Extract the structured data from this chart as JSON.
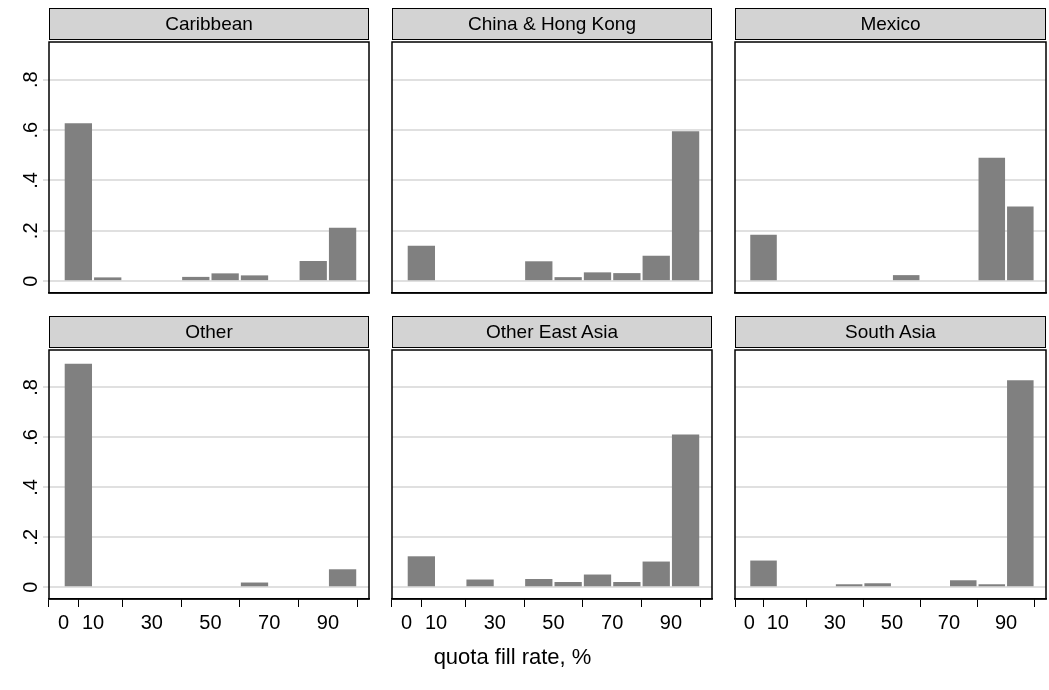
{
  "chart_data": [
    {
      "type": "histogram",
      "title": "Caribbean",
      "bins": [
        0,
        10,
        20,
        30,
        40,
        50,
        60,
        70,
        80,
        90,
        100
      ],
      "values": [
        0.627,
        0.015,
        0,
        0,
        0.017,
        0.031,
        0.023,
        0,
        0.08,
        0.212
      ],
      "color": "#808080",
      "xlim": [
        -5,
        104
      ],
      "ylim": [
        -0.047,
        0.95
      ],
      "xticks": [
        0,
        10,
        30,
        50,
        70,
        90
      ],
      "yticks": [
        0,
        {
          "value": 0.2,
          "label": ".2"
        },
        {
          "value": 0.4,
          "label": ".4"
        },
        {
          "value": 0.6,
          "label": ".6"
        },
        {
          "value": 0.8,
          "label": ".8"
        }
      ],
      "grid": "y",
      "tick_labels": "y"
    },
    {
      "type": "histogram",
      "title": "China & Hong Kong",
      "bins": [
        0,
        10,
        20,
        30,
        40,
        50,
        60,
        70,
        80,
        90,
        100
      ],
      "values": [
        0.141,
        0,
        0,
        0,
        0.079,
        0.016,
        0.035,
        0.032,
        0.101,
        0.595
      ],
      "color": "#808080",
      "xlim": [
        -5,
        104
      ],
      "ylim": [
        -0.047,
        0.95
      ],
      "xticks": [
        0,
        10,
        30,
        50,
        70,
        90
      ],
      "yticks": [
        0,
        0.2,
        0.4,
        0.6,
        0.8
      ],
      "grid": "y",
      "tick_labels": false
    },
    {
      "type": "histogram",
      "title": "Mexico",
      "bins": [
        0,
        10,
        20,
        30,
        40,
        50,
        60,
        70,
        80,
        90,
        100
      ],
      "values": [
        0.184,
        0,
        0,
        0,
        0,
        0.024,
        0,
        0,
        0.49,
        0.297
      ],
      "color": "#808080",
      "xlim": [
        -5,
        104
      ],
      "ylim": [
        -0.047,
        0.95
      ],
      "xticks": [
        0,
        10,
        30,
        50,
        70,
        90
      ],
      "yticks": [
        0,
        0.2,
        0.4,
        0.6,
        0.8
      ],
      "grid": "y",
      "tick_labels": false
    },
    {
      "type": "histogram",
      "title": "Other",
      "bins": [
        0,
        10,
        20,
        30,
        40,
        50,
        60,
        70,
        80,
        90,
        100
      ],
      "values": [
        0.895,
        0,
        0,
        0,
        0,
        0,
        0.019,
        0,
        0,
        0.072
      ],
      "color": "#808080",
      "xlim": [
        -5,
        104
      ],
      "ylim": [
        -0.047,
        0.95
      ],
      "xticks": [
        0,
        10,
        30,
        50,
        70,
        90
      ],
      "yticks": [
        0,
        {
          "value": 0.2,
          "label": ".2"
        },
        {
          "value": 0.4,
          "label": ".4"
        },
        {
          "value": 0.6,
          "label": ".6"
        },
        {
          "value": 0.8,
          "label": ".8"
        }
      ],
      "grid": "y"
    },
    {
      "type": "histogram",
      "title": "Other East Asia",
      "xlabel": "quota fill rate, %",
      "bins": [
        0,
        10,
        20,
        30,
        40,
        50,
        60,
        70,
        80,
        90,
        100
      ],
      "values": [
        0.124,
        0,
        0.031,
        0,
        0.033,
        0.021,
        0.051,
        0.021,
        0.103,
        0.612
      ],
      "color": "#808080",
      "xlim": [
        -5,
        104
      ],
      "ylim": [
        -0.047,
        0.95
      ],
      "xticks": [
        0,
        10,
        30,
        50,
        70,
        90
      ],
      "yticks": [
        0,
        0.2,
        0.4,
        0.6,
        0.8
      ],
      "grid": "y",
      "tick_labels": "x"
    },
    {
      "type": "histogram",
      "title": "South Asia",
      "bins": [
        0,
        10,
        20,
        30,
        40,
        50,
        60,
        70,
        80,
        90,
        100
      ],
      "values": [
        0.107,
        0,
        0,
        0.012,
        0.016,
        0,
        0,
        0.028,
        0.012,
        0.829
      ],
      "color": "#808080",
      "xlim": [
        -5,
        104
      ],
      "ylim": [
        -0.047,
        0.95
      ],
      "xticks": [
        0,
        10,
        30,
        50,
        70,
        90
      ],
      "yticks": [
        0,
        0.2,
        0.4,
        0.6,
        0.8
      ],
      "grid": "y",
      "tick_labels": "x"
    }
  ]
}
